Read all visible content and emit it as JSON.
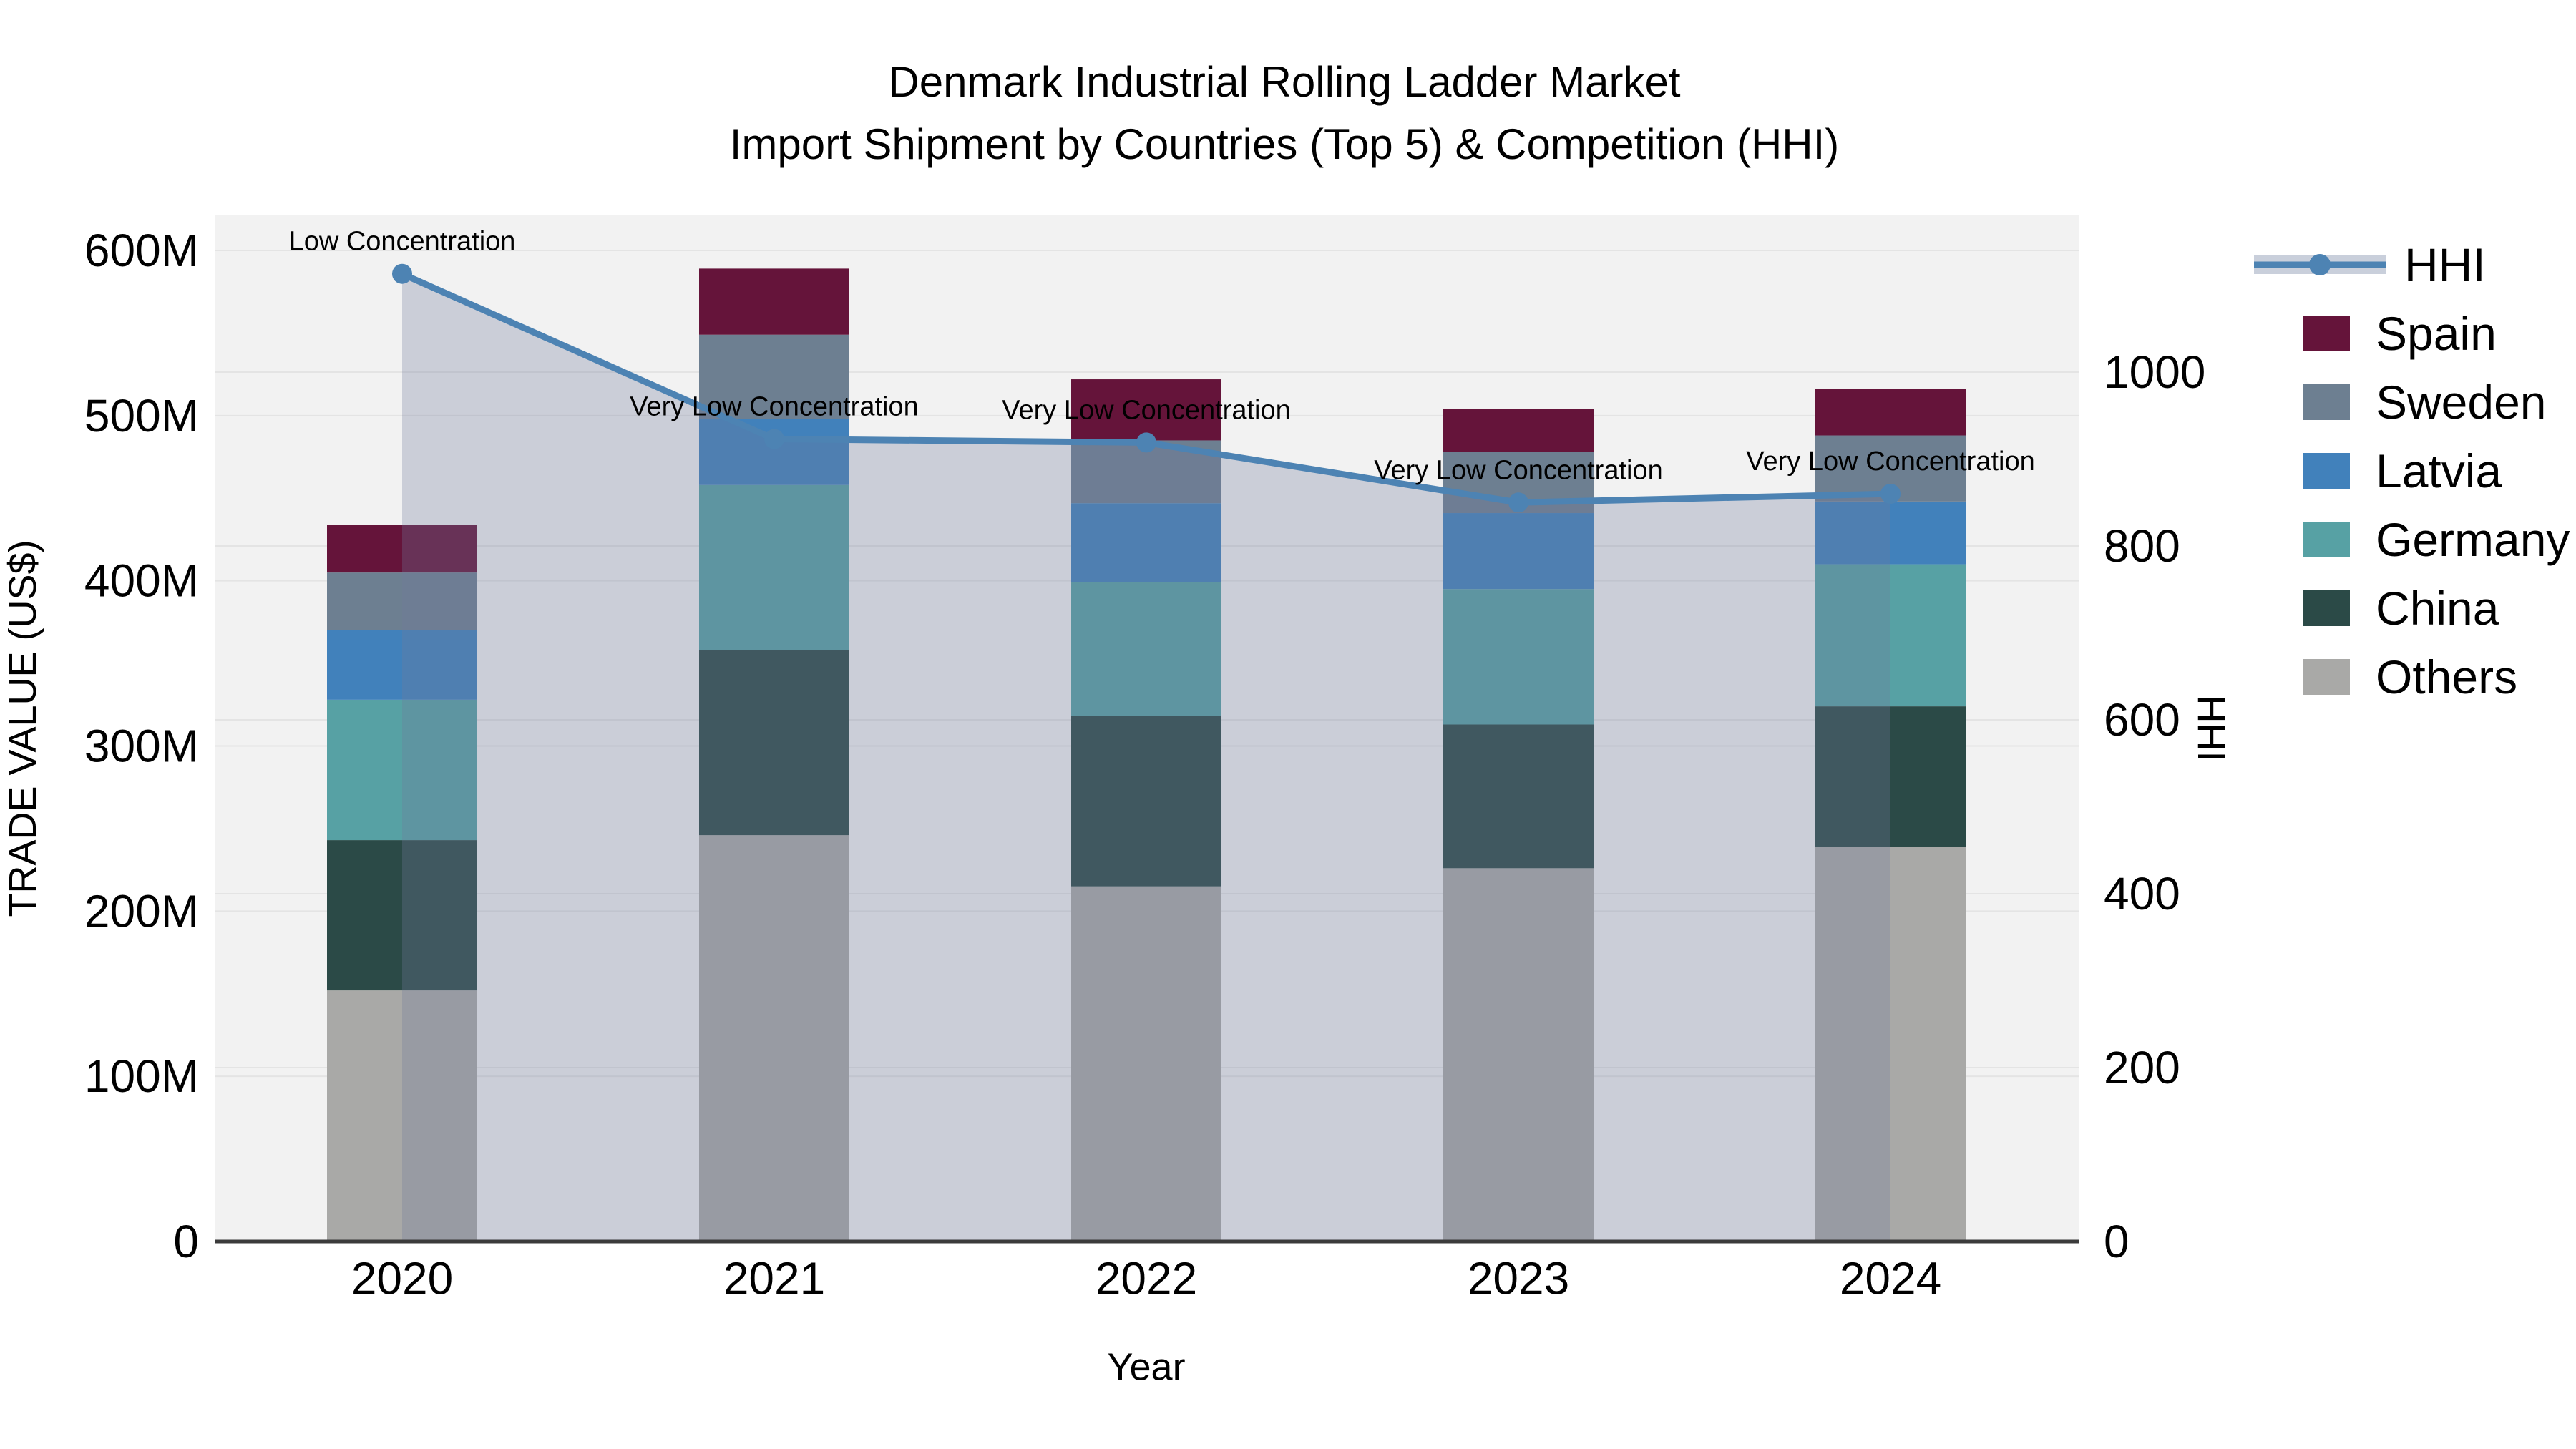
{
  "title": {
    "line1": "Denmark Industrial Rolling Ladder Market",
    "line2": "Import Shipment by Countries (Top 5) & Competition (HHI)"
  },
  "axes": {
    "x": {
      "label": "Year",
      "tick_labels": [
        "2020",
        "2021",
        "2022",
        "2023",
        "2024"
      ]
    },
    "y_left": {
      "label": "TRADE VALUE (US$)",
      "tick_values": [
        0,
        100,
        200,
        300,
        400,
        500,
        600
      ],
      "tick_labels": [
        "0",
        "100M",
        "200M",
        "300M",
        "400M",
        "500M",
        "600M"
      ]
    },
    "y_right": {
      "label": "HHI",
      "tick_values": [
        0,
        200,
        400,
        600,
        800,
        1000
      ],
      "tick_labels": [
        "0",
        "200",
        "400",
        "600",
        "800",
        "1000"
      ]
    }
  },
  "chart_data": {
    "type": "bar",
    "subtype": "stacked-bars-with-line-overlay",
    "units": "million US$",
    "categories": [
      "2020",
      "2021",
      "2022",
      "2023",
      "2024"
    ],
    "series": [
      {
        "name": "Spain",
        "color": "#65143a",
        "values": [
          29,
          40,
          37,
          26,
          28
        ]
      },
      {
        "name": "Sweden",
        "color": "#6d7f91",
        "values": [
          35,
          51,
          38,
          37,
          40
        ]
      },
      {
        "name": "Latvia",
        "color": "#4181bb",
        "values": [
          42,
          40,
          48,
          46,
          38
        ]
      },
      {
        "name": "Germany",
        "color": "#57a1a4",
        "values": [
          85,
          100,
          81,
          82,
          86
        ]
      },
      {
        "name": "China",
        "color": "#2b4a47",
        "values": [
          91,
          112,
          103,
          87,
          85
        ]
      },
      {
        "name": "Others",
        "color": "#a9a9a7",
        "values": [
          152,
          246,
          215,
          226,
          239
        ]
      }
    ],
    "hhi": {
      "name": "HHI",
      "color": "#4d83b3",
      "area_fill": "rgba(112,122,155,0.30)",
      "legend_band_color": "#c9cfdb",
      "values": [
        1113,
        923,
        919,
        850,
        860
      ],
      "annotations": [
        "Low Concentration",
        "Very Low Concentration",
        "Very Low Concentration",
        "Very Low Concentration",
        "Very Low Concentration"
      ]
    },
    "title": "Denmark Industrial Rolling Ladder Market — Import Shipment by Countries (Top 5) & Competition (HHI)",
    "xlabel": "Year",
    "ylabel": "TRADE VALUE (US$)",
    "y2label": "HHI",
    "ylim": [
      0,
      622
    ],
    "y2lim": [
      0,
      1181
    ],
    "grid": true,
    "legend_position": "right",
    "plot_background": "#f2f2f2",
    "gridline_color": "#e4e4e4",
    "axis_line_color": "#3b3b3b"
  }
}
